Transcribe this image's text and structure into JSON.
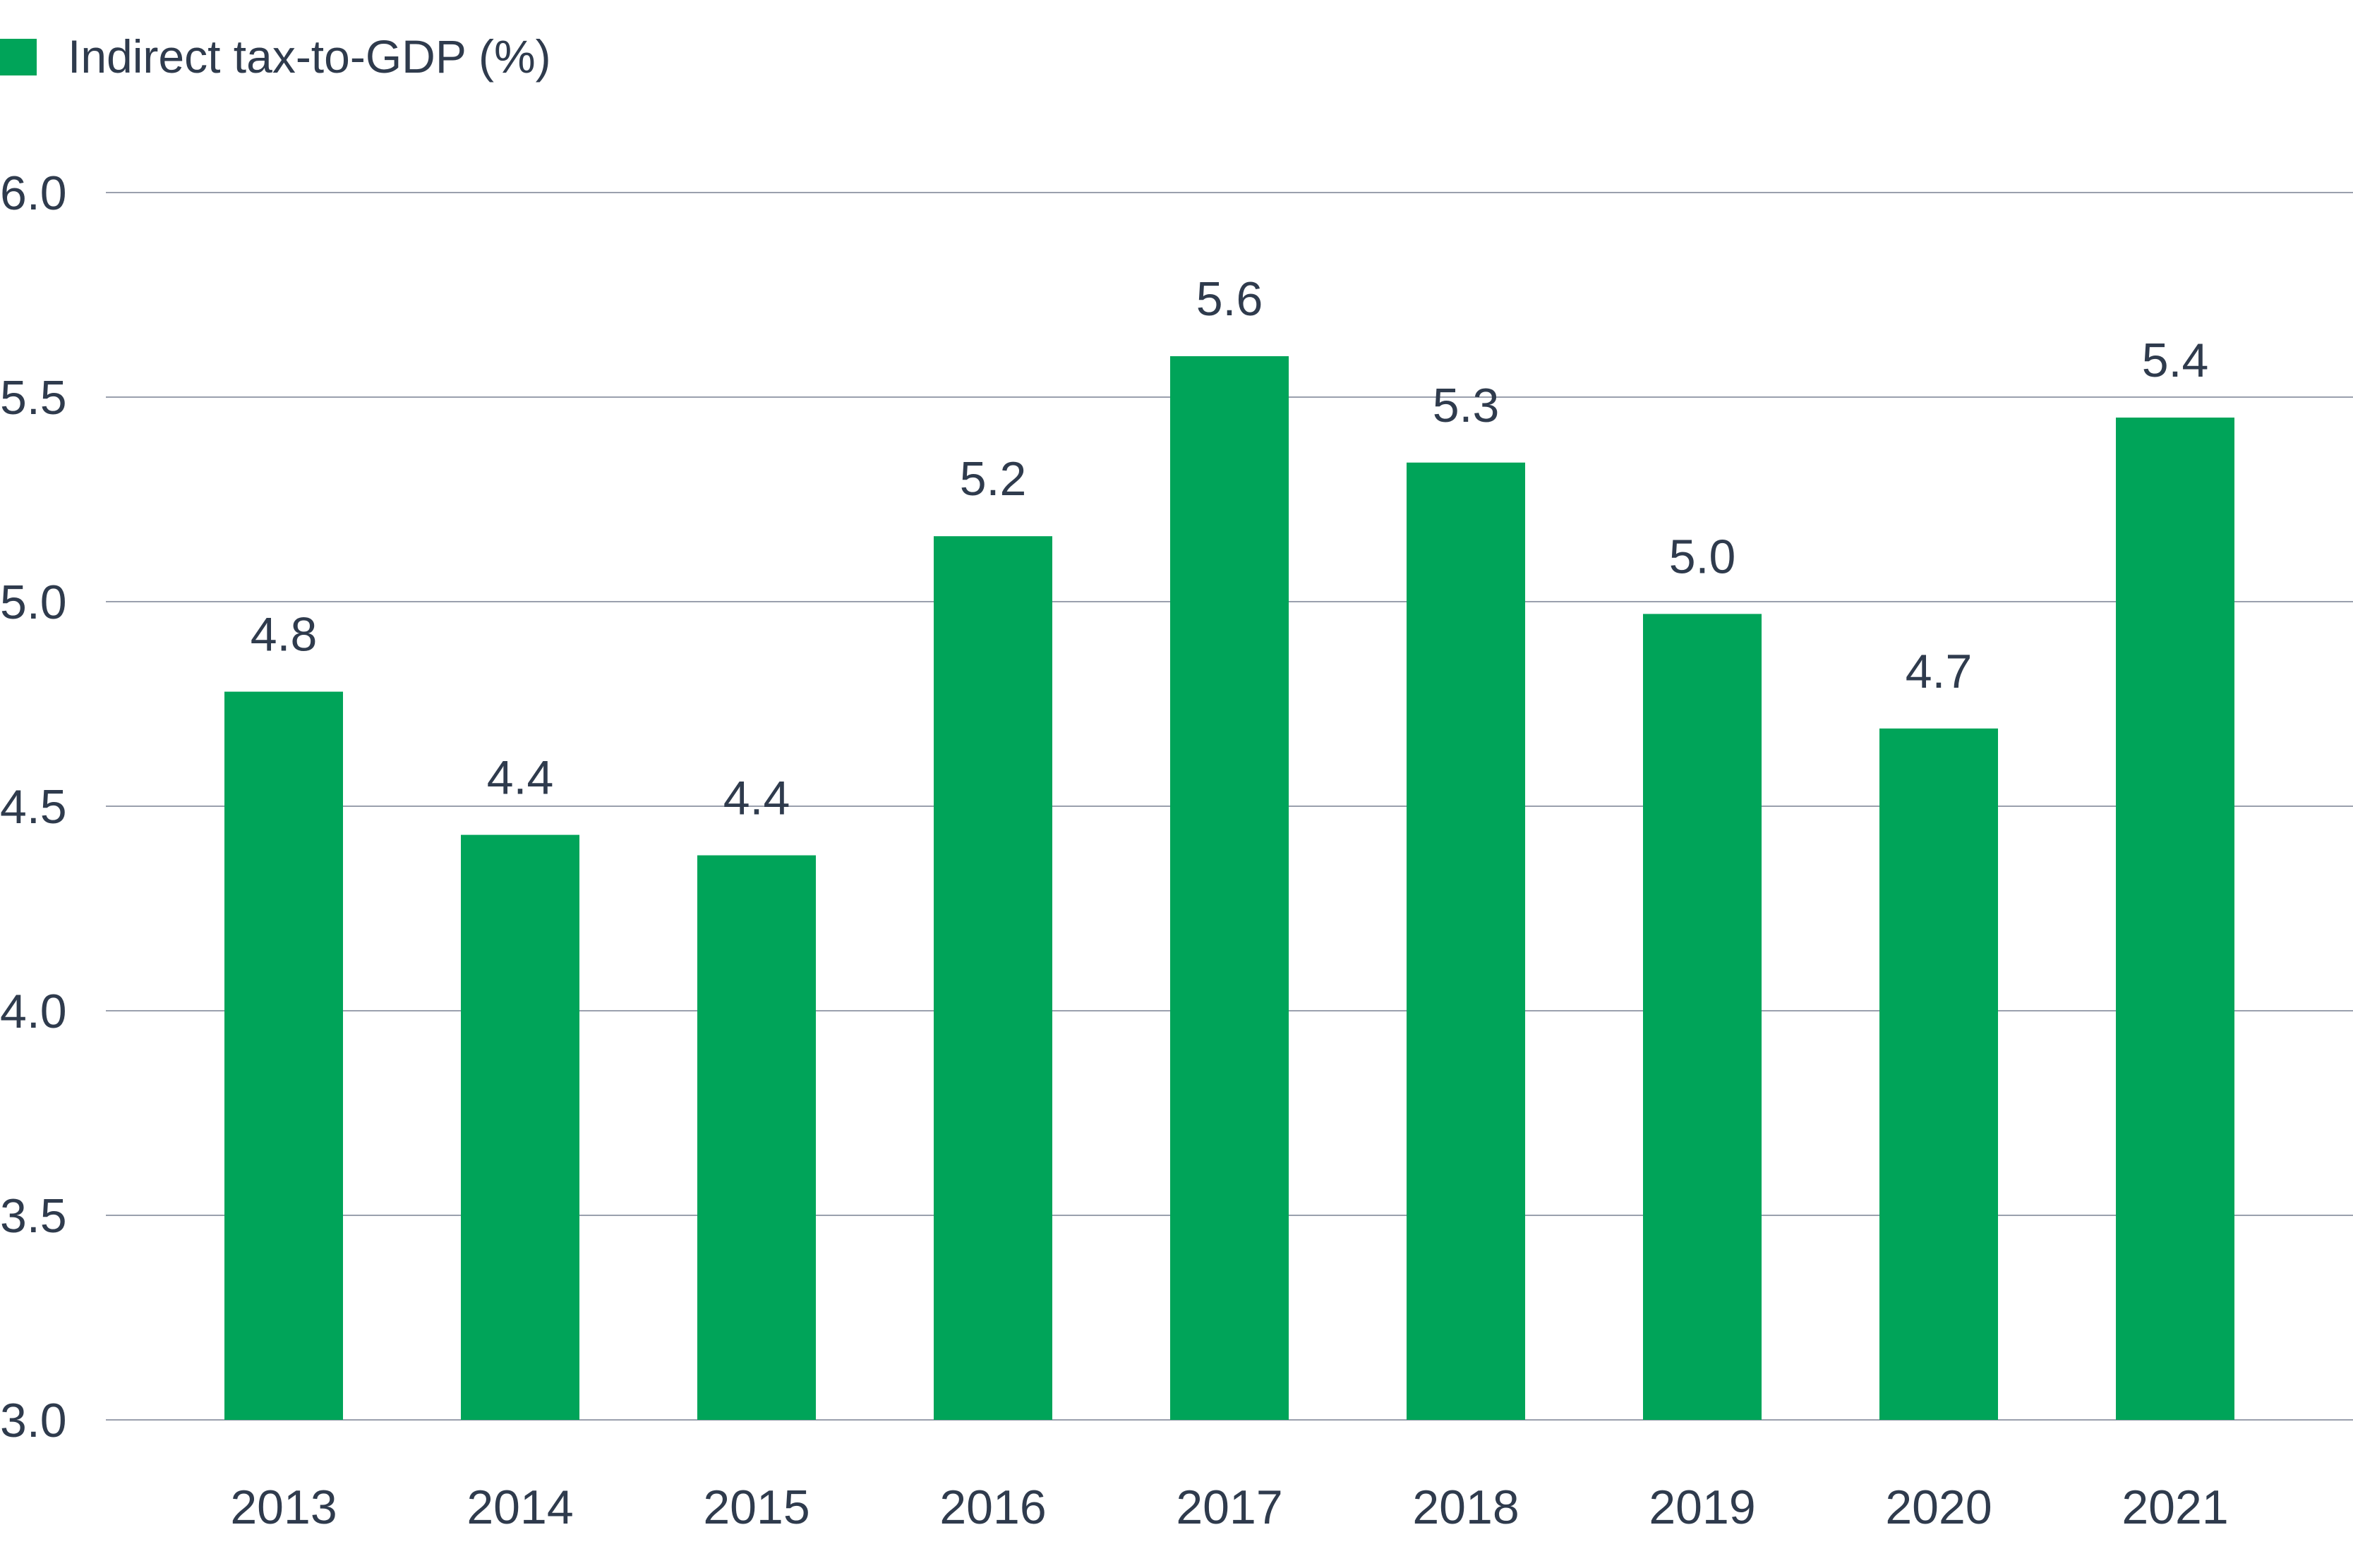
{
  "chart_data": {
    "type": "bar",
    "title": "",
    "xlabel": "",
    "ylabel": "",
    "categories": [
      "2013",
      "2014",
      "2015",
      "2016",
      "2017",
      "2018",
      "2019",
      "2020",
      "2021"
    ],
    "series": [
      {
        "name": "Indirect tax-to-GDP (%)",
        "values": [
          4.78,
          4.43,
          4.38,
          5.16,
          5.6,
          5.34,
          4.97,
          4.69,
          5.45
        ],
        "labels": [
          "4.8",
          "4.4",
          "4.4",
          "5.2",
          "5.6",
          "5.3",
          "5.0",
          "4.7",
          "5.4"
        ],
        "color": "#00a459"
      }
    ],
    "ylim": [
      3.0,
      6.0
    ],
    "yticks": [
      "3.0",
      "3.5",
      "4.0",
      "4.5",
      "5.0",
      "5.5",
      "6.0"
    ],
    "grid": "horizontal",
    "legend_position": "top-left",
    "colors": {
      "bar": "#00a459",
      "grid": "#9aa0ad",
      "text": "#2f3b4d"
    }
  }
}
